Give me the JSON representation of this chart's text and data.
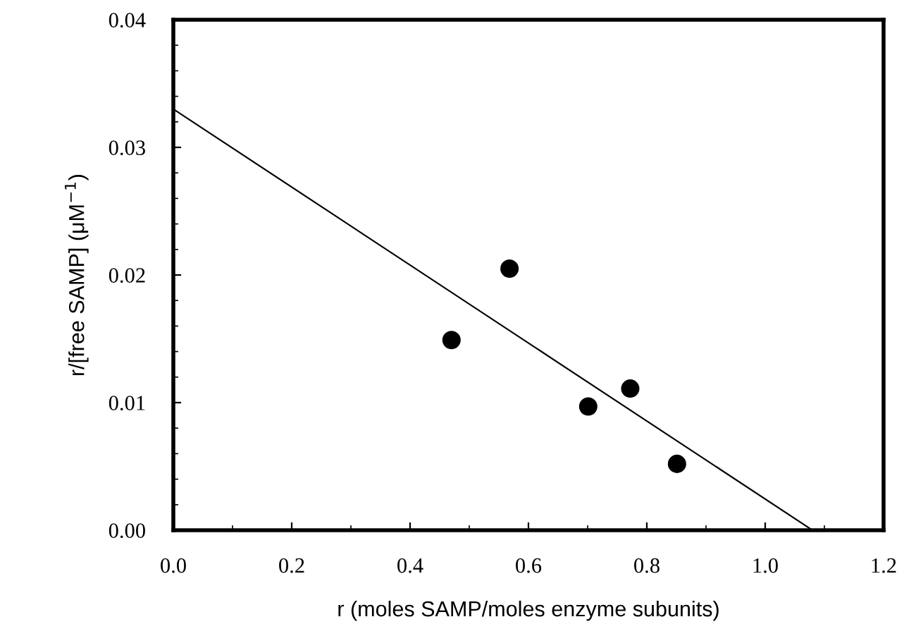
{
  "chart_data": {
    "type": "scatter",
    "xlabel": "r (moles SAMP/moles enzyme subunits)",
    "ylabel": "r/[free SAMP] (μM$^{−1}$)",
    "xlim": [
      0,
      1.2
    ],
    "ylim": [
      0,
      0.04
    ],
    "xticks": [
      {
        "value": 0,
        "label": "0.0"
      },
      0.2,
      0.4,
      0.6,
      0.8,
      {
        "value": 1,
        "label": "1.0"
      },
      1.2
    ],
    "yticks": [
      {
        "value": 0,
        "label": "0.00"
      },
      0.01,
      0.02,
      0.03,
      0.04
    ],
    "grid": false,
    "marker": "circle",
    "series": [
      {
        "color": "#000000",
        "x": [
          0.47,
          0.568,
          0.701,
          0.772,
          0.851
        ],
        "values": [
          0.0149,
          0.0205,
          0.0097,
          0.0111,
          0.0052
        ]
      },
      {
        "type": "line",
        "color": "#000000",
        "line_style": "solid",
        "marker": "none",
        "x": [
          0,
          1.08
        ],
        "values": [
          0.033,
          0
        ]
      }
    ]
  }
}
